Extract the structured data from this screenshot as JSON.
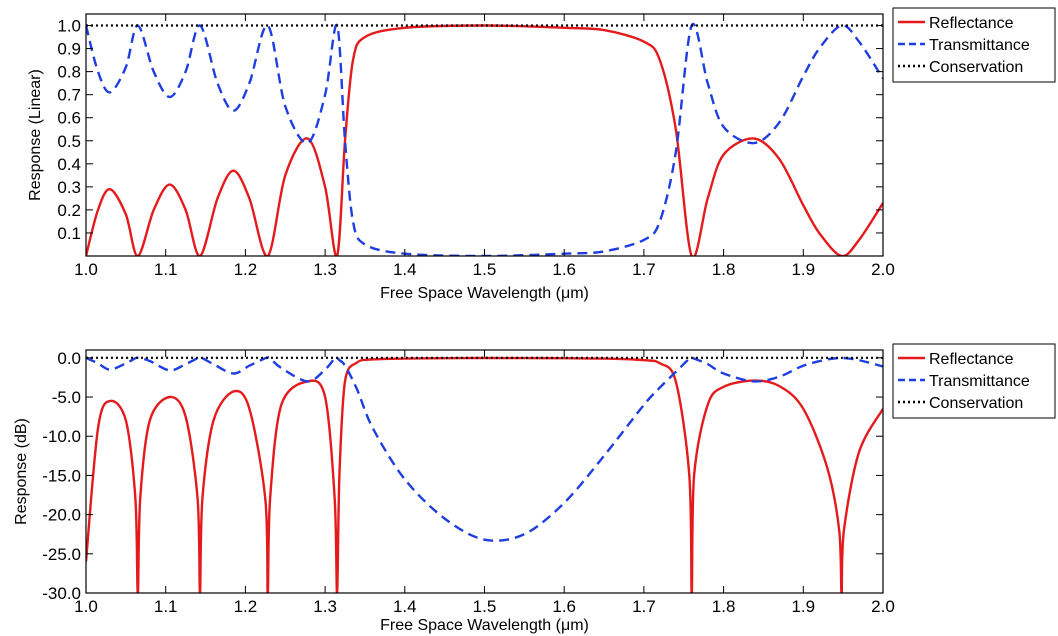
{
  "chart_data": [
    {
      "type": "line",
      "xlabel": "Free Space Wavelength (μm)",
      "ylabel": "Response (Linear)",
      "xlim": [
        1.0,
        2.0
      ],
      "ylim": [
        0.0,
        1.05
      ],
      "x_ticks": [
        "1.0",
        "1.1",
        "1.2",
        "1.3",
        "1.4",
        "1.5",
        "1.6",
        "1.7",
        "1.8",
        "1.9",
        "2.0"
      ],
      "y_ticks": [
        "0.1",
        "0.2",
        "0.3",
        "0.4",
        "0.5",
        "0.6",
        "0.7",
        "0.8",
        "0.9",
        "1.0"
      ],
      "y_tick_values": [
        0.1,
        0.2,
        0.3,
        0.4,
        0.5,
        0.6,
        0.7,
        0.8,
        0.9,
        1.0
      ],
      "legend_position": "outside-right-top",
      "x": [
        1.0,
        1.015,
        1.03,
        1.05,
        1.065,
        1.085,
        1.105,
        1.125,
        1.143,
        1.165,
        1.185,
        1.205,
        1.228,
        1.25,
        1.278,
        1.3,
        1.315,
        1.325,
        1.335,
        1.35,
        1.4,
        1.5,
        1.6,
        1.65,
        1.7,
        1.72,
        1.74,
        1.76,
        1.78,
        1.8,
        1.838,
        1.87,
        1.9,
        1.92,
        1.948,
        1.97,
        2.0
      ],
      "series": [
        {
          "name": "Reflectance",
          "color": "#e41a1c",
          "dash": "solid",
          "values": [
            0.0,
            0.2,
            0.29,
            0.18,
            0.0,
            0.2,
            0.31,
            0.2,
            0.0,
            0.25,
            0.37,
            0.25,
            0.0,
            0.35,
            0.51,
            0.3,
            0.0,
            0.5,
            0.85,
            0.95,
            0.99,
            1.0,
            0.99,
            0.98,
            0.93,
            0.85,
            0.55,
            0.0,
            0.25,
            0.44,
            0.51,
            0.42,
            0.22,
            0.1,
            0.0,
            0.07,
            0.23
          ]
        },
        {
          "name": "Transmittance",
          "color": "#1f3ee0",
          "dash": "dashed",
          "values": [
            1.0,
            0.8,
            0.71,
            0.82,
            1.0,
            0.8,
            0.69,
            0.8,
            1.0,
            0.75,
            0.63,
            0.75,
            1.0,
            0.65,
            0.49,
            0.7,
            1.0,
            0.5,
            0.15,
            0.05,
            0.01,
            0.0,
            0.01,
            0.02,
            0.07,
            0.15,
            0.45,
            1.0,
            0.75,
            0.56,
            0.49,
            0.58,
            0.78,
            0.9,
            1.0,
            0.93,
            0.77
          ]
        },
        {
          "name": "Conservation",
          "color": "#000000",
          "dash": "dotted",
          "values": [
            1.0,
            1.0,
            1.0,
            1.0,
            1.0,
            1.0,
            1.0,
            1.0,
            1.0,
            1.0,
            1.0,
            1.0,
            1.0,
            1.0,
            1.0,
            1.0,
            1.0,
            1.0,
            1.0,
            1.0,
            1.0,
            1.0,
            1.0,
            1.0,
            1.0,
            1.0,
            1.0,
            1.0,
            1.0,
            1.0,
            1.0,
            1.0,
            1.0,
            1.0,
            1.0,
            1.0,
            1.0
          ]
        }
      ]
    },
    {
      "type": "line",
      "xlabel": "Free Space Wavelength (μm)",
      "ylabel": "Response (dB)",
      "xlim": [
        1.0,
        2.0
      ],
      "ylim": [
        -30.0,
        1.0
      ],
      "x_ticks": [
        "1.0",
        "1.1",
        "1.2",
        "1.3",
        "1.4",
        "1.5",
        "1.6",
        "1.7",
        "1.8",
        "1.9",
        "2.0"
      ],
      "y_ticks": [
        "0.0",
        "-5.0",
        "-10.0",
        "-15.0",
        "-20.0",
        "-25.0",
        "-30.0"
      ],
      "y_tick_values": [
        0,
        -5,
        -10,
        -15,
        -20,
        -25,
        -30
      ],
      "legend_position": "outside-right-top",
      "x": [
        1.0,
        1.015,
        1.03,
        1.05,
        1.062,
        1.065,
        1.068,
        1.08,
        1.105,
        1.125,
        1.14,
        1.143,
        1.146,
        1.16,
        1.185,
        1.205,
        1.225,
        1.228,
        1.231,
        1.245,
        1.278,
        1.3,
        1.312,
        1.315,
        1.318,
        1.325,
        1.34,
        1.36,
        1.4,
        1.45,
        1.5,
        1.55,
        1.6,
        1.65,
        1.7,
        1.72,
        1.74,
        1.757,
        1.76,
        1.763,
        1.78,
        1.8,
        1.838,
        1.87,
        1.9,
        1.93,
        1.945,
        1.948,
        1.951,
        1.97,
        2.0
      ],
      "series": [
        {
          "name": "Reflectance",
          "color": "#e41a1c",
          "dash": "solid",
          "values": [
            -26,
            -9,
            -5.5,
            -8,
            -18,
            -30,
            -18,
            -8,
            -5.0,
            -7.5,
            -18,
            -30,
            -18,
            -8,
            -4.3,
            -6.5,
            -18,
            -30,
            -18,
            -6,
            -3.0,
            -5,
            -18,
            -30,
            -15,
            -3,
            -0.6,
            -0.2,
            -0.1,
            -0.05,
            -0.02,
            -0.03,
            -0.05,
            -0.1,
            -0.3,
            -0.7,
            -3,
            -15,
            -30,
            -15,
            -6,
            -3.7,
            -2.9,
            -3.6,
            -6.5,
            -14,
            -22,
            -30,
            -22,
            -12,
            -6.5
          ]
        },
        {
          "name": "Transmittance",
          "color": "#1f3ee0",
          "dash": "dashed",
          "values": [
            0.0,
            -0.7,
            -1.5,
            -0.7,
            -0.05,
            0.0,
            -0.05,
            -0.4,
            -1.6,
            -0.8,
            -0.05,
            0.0,
            -0.05,
            -0.8,
            -2.0,
            -1.0,
            -0.05,
            0.0,
            -0.05,
            -1.3,
            -3.0,
            -1.5,
            -0.05,
            0.0,
            -0.3,
            -1.0,
            -4,
            -9,
            -15.5,
            -20.5,
            -23.2,
            -22.5,
            -18.5,
            -12.5,
            -6,
            -3.8,
            -1.8,
            -0.1,
            0.0,
            -0.1,
            -0.8,
            -2.0,
            -3.0,
            -2.4,
            -1.0,
            -0.2,
            -0.02,
            0.0,
            -0.02,
            -0.3,
            -1.1
          ]
        },
        {
          "name": "Conservation",
          "color": "#000000",
          "dash": "dotted",
          "values": [
            0.0,
            0.0,
            0.0,
            0.0,
            0.0,
            0.0,
            0.0,
            0.0,
            0.0,
            0.0,
            0.0,
            0.0,
            0.0,
            0.0,
            0.0,
            0.0,
            0.0,
            0.0,
            0.0,
            0.0,
            0.0,
            0.0,
            0.0,
            0.0,
            0.0,
            0.0,
            0.0,
            0.0,
            0.0,
            0.0,
            0.0,
            0.0,
            0.0,
            0.0,
            0.0,
            0.0,
            0.0,
            0.0,
            0.0,
            0.0,
            0.0,
            0.0,
            0.0,
            0.0,
            0.0,
            0.0,
            0.0,
            0.0,
            0.0,
            0.0,
            0.0
          ]
        }
      ]
    }
  ]
}
